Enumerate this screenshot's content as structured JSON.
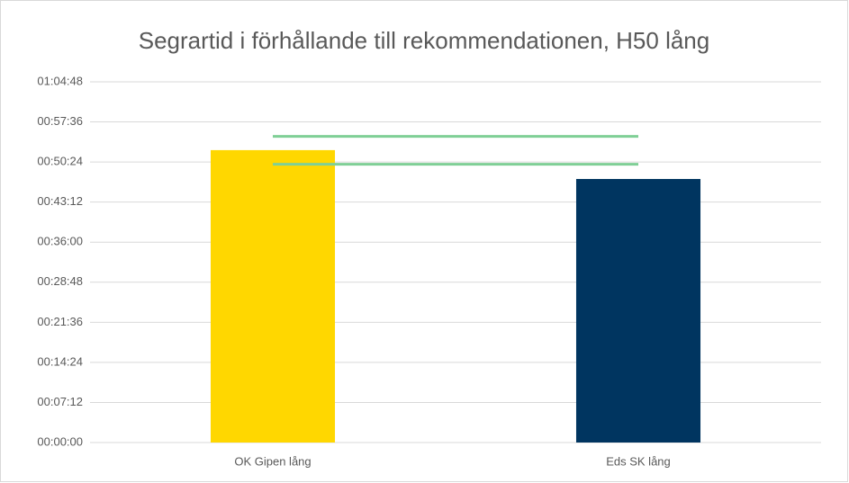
{
  "chart_data": {
    "type": "bar",
    "title": "Segrartid i förhållande till rekommendationen, H50 lång",
    "categories": [
      "OK Gipen lång",
      "Eds SK lång"
    ],
    "values": [
      3152,
      2841
    ],
    "colors": [
      "#ffd700",
      "#003560"
    ],
    "lines": [
      {
        "color": "#7fcf96",
        "values": [
          3300,
          3300
        ]
      },
      {
        "color": "#7fcf96",
        "values": [
          3000,
          3000
        ]
      }
    ],
    "ylim": [
      0,
      3888
    ],
    "yticks": [
      {
        "value": 0,
        "label": "00:00:00"
      },
      {
        "value": 432,
        "label": "00:07:12"
      },
      {
        "value": 864,
        "label": "00:14:24"
      },
      {
        "value": 1296,
        "label": "00:21:36"
      },
      {
        "value": 1728,
        "label": "00:28:48"
      },
      {
        "value": 2160,
        "label": "00:36:00"
      },
      {
        "value": 2592,
        "label": "00:43:12"
      },
      {
        "value": 3024,
        "label": "00:50:24"
      },
      {
        "value": 3456,
        "label": "00:57:36"
      },
      {
        "value": 3888,
        "label": "01:04:48"
      }
    ],
    "grid": true
  }
}
